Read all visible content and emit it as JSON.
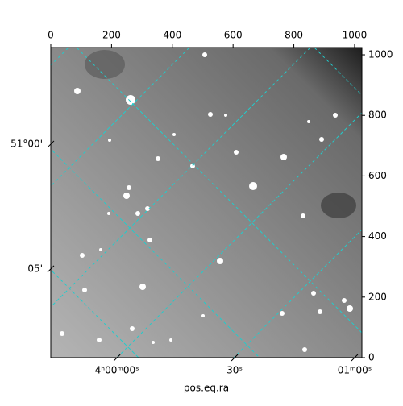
{
  "chart_data": {
    "type": "image",
    "xlabel": "pos.eq.ra",
    "xlim": [
      0,
      1024
    ],
    "ylim": [
      0,
      1024
    ],
    "xticks": [
      0,
      200,
      400,
      600,
      800,
      1000
    ],
    "yticks": [
      0,
      200,
      400,
      600,
      800,
      1000
    ],
    "world_xticks": [
      {
        "value": 218,
        "label": "4ʰ00ᵐ00ˢ"
      },
      {
        "value": 605,
        "label": "30ˢ"
      },
      {
        "value": 1000,
        "label": "01ᵐ00ˢ"
      }
    ],
    "world_yticks": [
      {
        "value": 705,
        "label": "51°00'"
      },
      {
        "value": 293,
        "label": "05'"
      }
    ],
    "grid_color": "#22cccc"
  }
}
